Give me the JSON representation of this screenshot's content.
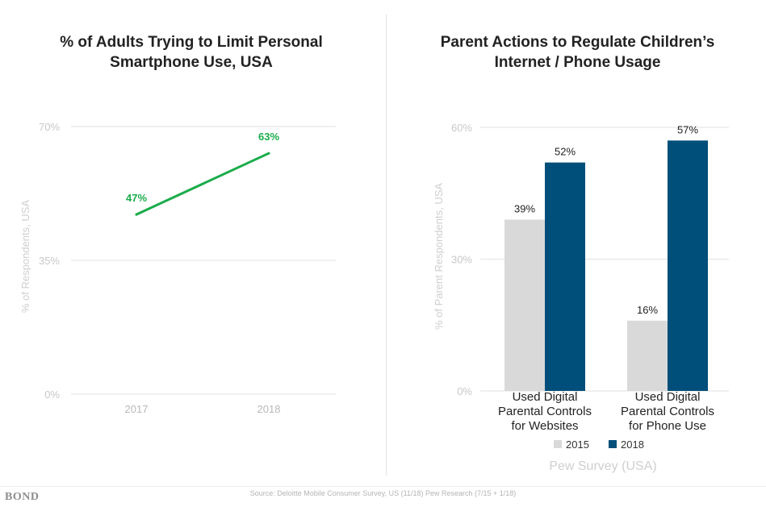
{
  "chart_data": [
    {
      "type": "line",
      "title": "% of Adults Trying to Limit Personal\nSmartphone Use, USA",
      "ylabel": "% of Respondents, USA",
      "ylim": [
        0,
        70
      ],
      "y_ticks": [
        "70%",
        "35%",
        "0%"
      ],
      "categories": [
        "2017",
        "2018"
      ],
      "series": [
        {
          "values": [
            47,
            63
          ],
          "labels": [
            "47%",
            "63%"
          ]
        }
      ],
      "color": "#1aac4b",
      "grid": true
    },
    {
      "type": "bar",
      "title": "Parent Actions to Regulate Children’s\nInternet / Phone Usage",
      "ylabel": "% of Parent Respondents, USA",
      "ylim": [
        0,
        60
      ],
      "y_ticks": [
        "60%",
        "30%",
        "0%"
      ],
      "categories": [
        "Used Digital\nParental Controls\nfor Websites",
        "Used Digital\nParental Controls\nfor Phone Use"
      ],
      "series": [
        {
          "name": "2015",
          "values": [
            39,
            16
          ],
          "labels": [
            "39%",
            "16%"
          ],
          "color": "#d9d9d9"
        },
        {
          "name": "2018",
          "values": [
            52,
            57
          ],
          "labels": [
            "52%",
            "57%"
          ],
          "color": "#004f7a"
        }
      ],
      "legend": "bottom",
      "caption": "Pew Survey (USA)",
      "grid": true
    }
  ],
  "footer": {
    "source": "Source: Deloitte Mobile Consumer Survey, US (11/18)  Pew Research (7/15 + 1/18)",
    "logo": "BOND"
  }
}
